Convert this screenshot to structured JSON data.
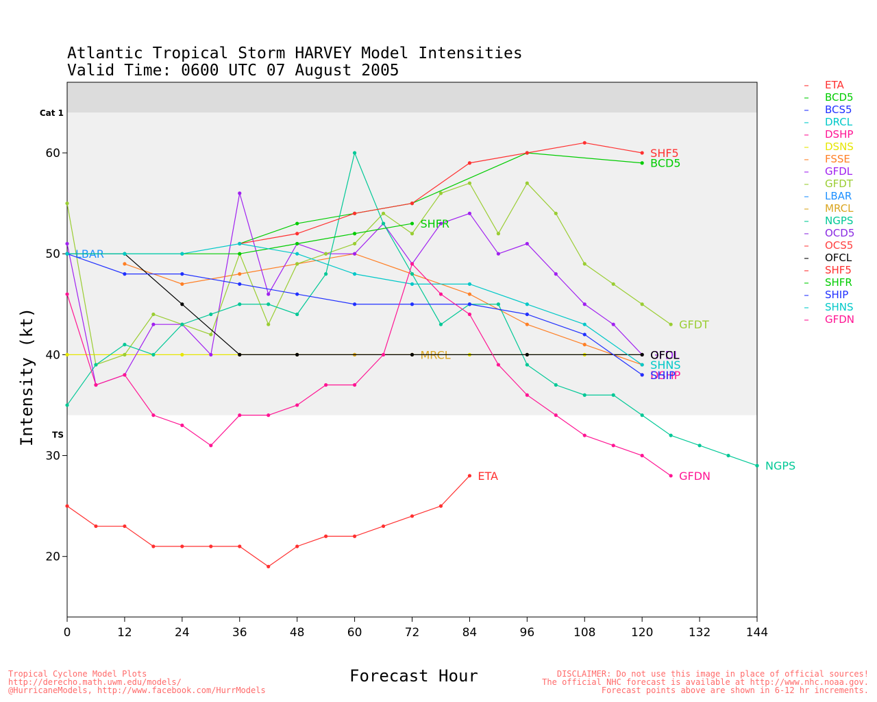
{
  "chart_data": {
    "type": "line",
    "title": "Atlantic Tropical Storm HARVEY Model Intensities",
    "subtitle": "Valid Time: 0600 UTC 07 August 2005",
    "xlabel": "Forecast Hour",
    "ylabel": "Intensity (kt)",
    "xlim": [
      0,
      144
    ],
    "ylim": [
      14,
      67
    ],
    "x_ticks": [
      0,
      12,
      24,
      36,
      48,
      60,
      72,
      84,
      96,
      108,
      120,
      132,
      144
    ],
    "y_ticks": [
      20,
      30,
      40,
      50,
      60
    ],
    "bands": [
      {
        "label": "TS",
        "from": 34,
        "to": 64,
        "color": "#f0f0f0"
      },
      {
        "label": "Cat 1",
        "from": 64,
        "to": 67,
        "color": "#dcdcdc"
      }
    ],
    "grid": false,
    "legend_position": "right",
    "series": [
      {
        "name": "ETA",
        "color": "#ff3030",
        "x": [
          0,
          6,
          12,
          18,
          24,
          30,
          36,
          42,
          48,
          54,
          60,
          66,
          72,
          78,
          84
        ],
        "values": [
          25,
          23,
          23,
          21,
          21,
          21,
          21,
          19,
          21,
          22,
          22,
          23,
          24,
          25,
          28
        ],
        "end_label": "ETA"
      },
      {
        "name": "BCD5",
        "color": "#00cc00",
        "x": [
          36,
          48,
          60,
          72,
          96,
          120
        ],
        "values": [
          51,
          53,
          54,
          55,
          60,
          59
        ],
        "end_label": "BCD5"
      },
      {
        "name": "BCS5",
        "color": "#2030ff",
        "x": [],
        "values": []
      },
      {
        "name": "DRCL",
        "color": "#00c8c8",
        "x": [],
        "values": []
      },
      {
        "name": "DSHP",
        "color": "#ff1493",
        "x": [
          120
        ],
        "values": [
          38
        ],
        "end_label": "DSHP"
      },
      {
        "name": "DSNS",
        "color": "#e6e600",
        "x": [
          0,
          12,
          24,
          36,
          48,
          60,
          72,
          84,
          96,
          108,
          120
        ],
        "values": [
          40,
          40,
          40,
          40,
          40,
          40,
          40,
          40,
          40,
          40,
          40
        ]
      },
      {
        "name": "FSSE",
        "color": "#ff7f24",
        "x": [
          12,
          24,
          36,
          48,
          60,
          72,
          84,
          96,
          108,
          120
        ],
        "values": [
          49,
          47,
          48,
          49,
          50,
          48,
          46,
          43,
          41,
          39
        ]
      },
      {
        "name": "GFDL",
        "color": "#a020f0",
        "x": [
          0,
          6,
          12,
          18,
          24,
          30,
          36,
          42,
          48,
          54,
          60,
          66,
          72,
          78,
          84,
          90,
          96,
          102,
          108,
          114,
          120
        ],
        "values": [
          51,
          37,
          38,
          43,
          43,
          40,
          56,
          46,
          51,
          50,
          50,
          53,
          49,
          53,
          54,
          50,
          51,
          48,
          45,
          43,
          40
        ],
        "end_label": "GFDL"
      },
      {
        "name": "GFDT",
        "color": "#9acd32",
        "x": [
          0,
          6,
          12,
          18,
          24,
          30,
          36,
          42,
          48,
          54,
          60,
          66,
          72,
          78,
          84,
          90,
          96,
          102,
          108,
          114,
          120,
          126
        ],
        "values": [
          55,
          39,
          40,
          44,
          43,
          42,
          50,
          43,
          49,
          50,
          51,
          54,
          52,
          56,
          57,
          52,
          57,
          54,
          49,
          47,
          45,
          43
        ],
        "end_label": "GFDT"
      },
      {
        "name": "LBAR",
        "color": "#1e90ff",
        "x": [
          0
        ],
        "values": [
          50
        ],
        "end_label": "LBAR"
      },
      {
        "name": "MRCL",
        "color": "#daa520",
        "x": [
          36,
          48,
          60,
          72
        ],
        "values": [
          40,
          40,
          40,
          40
        ],
        "end_label": "MRCL"
      },
      {
        "name": "NGPS",
        "color": "#00c896",
        "x": [
          0,
          6,
          12,
          18,
          24,
          30,
          36,
          42,
          48,
          54,
          60,
          66,
          72,
          78,
          84,
          90,
          96,
          102,
          108,
          114,
          120,
          126,
          132,
          138,
          144
        ],
        "values": [
          35,
          39,
          41,
          40,
          43,
          44,
          45,
          45,
          44,
          48,
          60,
          53,
          48,
          43,
          45,
          45,
          39,
          37,
          36,
          36,
          34,
          32,
          31,
          30,
          29
        ],
        "end_label": "NGPS"
      },
      {
        "name": "OCD5",
        "color": "#8a2be2",
        "x": [],
        "values": []
      },
      {
        "name": "OCS5",
        "color": "#ff4040",
        "x": [],
        "values": []
      },
      {
        "name": "OFCL",
        "color": "#000000",
        "x": [
          0,
          12,
          24,
          36,
          48,
          72,
          96,
          120
        ],
        "values": [
          50,
          50,
          45,
          40,
          40,
          40,
          40,
          40
        ],
        "end_label": "OFCL"
      },
      {
        "name": "SHF5",
        "color": "#ff3030",
        "x": [
          36,
          48,
          60,
          72,
          84,
          96,
          108,
          120
        ],
        "values": [
          51,
          52,
          54,
          55,
          59,
          60,
          61,
          60
        ],
        "end_label": "SHF5"
      },
      {
        "name": "SHFR",
        "color": "#00cc00",
        "x": [
          0,
          12,
          24,
          36,
          48,
          60,
          72
        ],
        "values": [
          50,
          50,
          50,
          50,
          51,
          52,
          53
        ],
        "end_label": "SHFR"
      },
      {
        "name": "SHIP",
        "color": "#2030ff",
        "x": [
          0,
          12,
          24,
          36,
          48,
          60,
          72,
          84,
          96,
          108,
          120
        ],
        "values": [
          50,
          48,
          48,
          47,
          46,
          45,
          45,
          45,
          44,
          42,
          38
        ],
        "end_label": "SHIP"
      },
      {
        "name": "SHNS",
        "color": "#00c8c8",
        "x": [
          0,
          12,
          24,
          36,
          48,
          60,
          72,
          84,
          96,
          108,
          120
        ],
        "values": [
          50,
          50,
          50,
          51,
          50,
          48,
          47,
          47,
          45,
          43,
          39
        ],
        "end_label": "SHNS"
      },
      {
        "name": "GFDN",
        "color": "#ff1493",
        "x": [
          0,
          6,
          12,
          18,
          24,
          30,
          36,
          42,
          48,
          54,
          60,
          66,
          72,
          78,
          84,
          90,
          96,
          102,
          108,
          114,
          120,
          126
        ],
        "values": [
          46,
          37,
          38,
          34,
          33,
          31,
          34,
          34,
          35,
          37,
          37,
          40,
          49,
          46,
          44,
          39,
          36,
          34,
          32,
          31,
          30,
          28
        ],
        "end_label": "GFDN"
      }
    ]
  },
  "footer": {
    "left_lines": [
      "Tropical Cyclone Model Plots",
      "http://derecho.math.uwm.edu/models/",
      "@HurricaneModels, http://www.facebook.com/HurrModels"
    ],
    "right_lines": [
      "DISCLAIMER: Do not use this image in place of official sources!",
      "The official NHC forecast is available at http://www.nhc.noaa.gov.",
      "Forecast points above are shown in 6-12 hr increments."
    ]
  }
}
